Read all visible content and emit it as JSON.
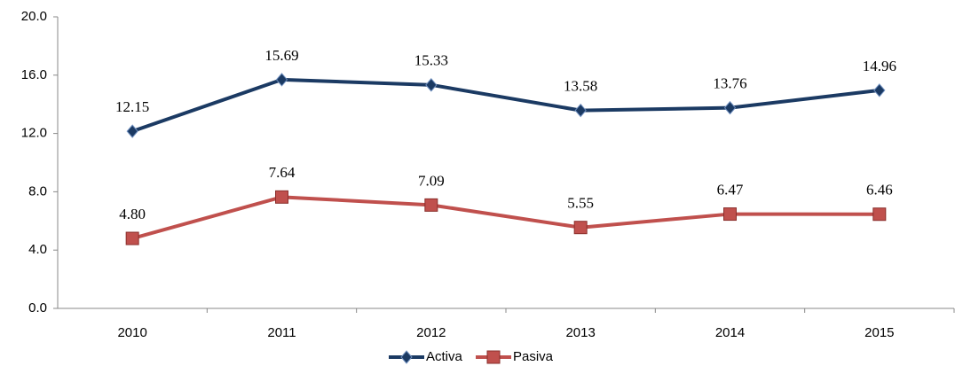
{
  "chart_data": {
    "type": "line",
    "categories": [
      "2010",
      "2011",
      "2012",
      "2013",
      "2014",
      "2015"
    ],
    "series": [
      {
        "name": "Activa",
        "color": "#1b3a63",
        "marker": "diamond",
        "values": [
          12.15,
          15.69,
          15.33,
          13.58,
          13.76,
          14.96
        ],
        "value_labels": [
          "12.15",
          "15.69",
          "15.33",
          "13.58",
          "13.76",
          "14.96"
        ]
      },
      {
        "name": "Pasiva",
        "color": "#c0504d",
        "marker": "square",
        "values": [
          4.8,
          7.64,
          7.09,
          5.55,
          6.47,
          6.46
        ],
        "value_labels": [
          "4.80",
          "7.64",
          "7.09",
          "5.55",
          "6.47",
          "6.46"
        ]
      }
    ],
    "ylim": [
      0,
      20
    ],
    "yticks": [
      {
        "value": 0,
        "label": "0.0"
      },
      {
        "value": 4,
        "label": "4.0"
      },
      {
        "value": 8,
        "label": "8.0"
      },
      {
        "value": 12,
        "label": "12.0"
      },
      {
        "value": 16,
        "label": "16.0"
      },
      {
        "value": 20,
        "label": "20.0"
      }
    ],
    "legend": "bottom"
  }
}
